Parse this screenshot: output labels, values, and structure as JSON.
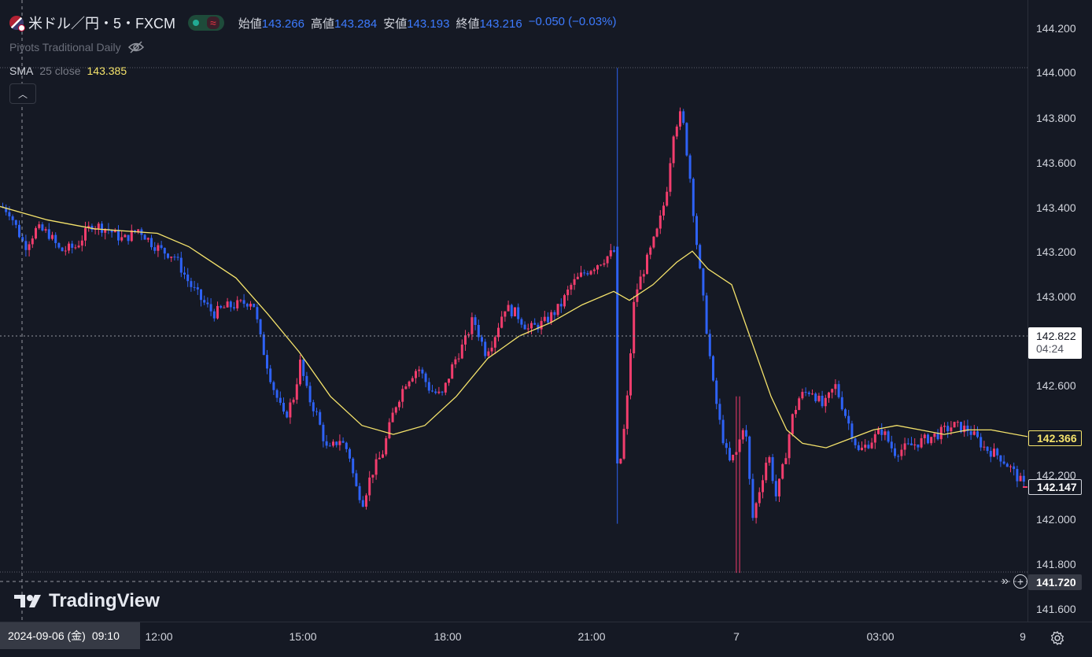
{
  "header": {
    "symbol": "米ドル／円・5・FXCM",
    "flag_icon": "us-jp-flag-icon",
    "ohlc": [
      {
        "key": "始値",
        "value": "143.266"
      },
      {
        "key": "高値",
        "value": "143.284"
      },
      {
        "key": "安値",
        "value": "143.193"
      },
      {
        "key": "終値",
        "value": "143.216"
      }
    ],
    "change": "−0.050 (−0.03%)"
  },
  "indicators": {
    "pivots": "Piyots Traditional Daily",
    "sma_name": "SMA",
    "sma_params": "25 close",
    "sma_value": "143.385"
  },
  "watermark": "TradingView",
  "price_axis": {
    "ticks": [
      "144.200",
      "144.000",
      "143.800",
      "143.600",
      "143.400",
      "143.200",
      "143.000",
      "142.600",
      "142.200",
      "142.000",
      "141.800",
      "141.600"
    ],
    "crosshair_price": "142.822",
    "countdown": "04:24",
    "sma_label": "142.366",
    "last_price": "142.147",
    "cursor_price": "141.720"
  },
  "time_axis": {
    "date_label": "2024-09-06 (金)",
    "time_label": "09:10",
    "ticks": [
      "12:00",
      "15:00",
      "18:00",
      "21:00",
      "7",
      "03:00",
      "9"
    ]
  },
  "colors": {
    "up": "#f23d6d",
    "down": "#2e62f5",
    "sma": "#f5e36b",
    "background": "#151924"
  },
  "chart_data": {
    "type": "candlestick",
    "timeframe": "5m",
    "ylim": [
      141.55,
      144.25
    ],
    "series": [
      {
        "name": "SMA 25 close",
        "type": "line"
      }
    ],
    "close_path": [
      [
        0,
        143.4
      ],
      [
        10,
        143.38
      ],
      [
        20,
        143.3
      ],
      [
        30,
        143.22
      ],
      [
        45,
        143.3
      ],
      [
        60,
        143.28
      ],
      [
        75,
        143.2
      ],
      [
        95,
        143.22
      ],
      [
        115,
        143.32
      ],
      [
        135,
        143.3
      ],
      [
        155,
        143.25
      ],
      [
        175,
        143.3
      ],
      [
        190,
        143.24
      ],
      [
        205,
        143.2
      ],
      [
        220,
        143.18
      ],
      [
        240,
        143.05
      ],
      [
        255,
        142.98
      ],
      [
        270,
        142.92
      ],
      [
        285,
        142.95
      ],
      [
        300,
        142.96
      ],
      [
        320,
        142.98
      ],
      [
        330,
        142.8
      ],
      [
        345,
        142.6
      ],
      [
        360,
        142.45
      ],
      [
        372,
        142.55
      ],
      [
        380,
        142.7
      ],
      [
        390,
        142.55
      ],
      [
        400,
        142.48
      ],
      [
        415,
        142.3
      ],
      [
        430,
        142.36
      ],
      [
        442,
        142.3
      ],
      [
        450,
        142.15
      ],
      [
        460,
        142.08
      ],
      [
        470,
        142.2
      ],
      [
        485,
        142.3
      ],
      [
        500,
        142.5
      ],
      [
        515,
        142.62
      ],
      [
        530,
        142.68
      ],
      [
        545,
        142.58
      ],
      [
        560,
        142.55
      ],
      [
        575,
        142.7
      ],
      [
        590,
        142.8
      ],
      [
        600,
        142.9
      ],
      [
        615,
        142.75
      ],
      [
        625,
        142.8
      ],
      [
        640,
        142.95
      ],
      [
        655,
        142.92
      ],
      [
        670,
        142.85
      ],
      [
        690,
        142.88
      ],
      [
        710,
        142.95
      ],
      [
        725,
        143.05
      ],
      [
        740,
        143.1
      ],
      [
        760,
        143.15
      ],
      [
        780,
        143.2
      ],
      [
        785,
        142.2
      ],
      [
        795,
        142.5
      ],
      [
        805,
        143.0
      ],
      [
        815,
        143.1
      ],
      [
        825,
        143.2
      ],
      [
        835,
        143.3
      ],
      [
        845,
        143.45
      ],
      [
        855,
        143.75
      ],
      [
        865,
        143.82
      ],
      [
        875,
        143.55
      ],
      [
        885,
        143.2
      ],
      [
        895,
        142.9
      ],
      [
        905,
        142.6
      ],
      [
        915,
        142.4
      ],
      [
        925,
        142.25
      ],
      [
        935,
        142.3
      ],
      [
        945,
        142.45
      ],
      [
        955,
        142.0
      ],
      [
        965,
        142.15
      ],
      [
        975,
        142.3
      ],
      [
        985,
        142.1
      ],
      [
        995,
        142.25
      ],
      [
        1005,
        142.45
      ],
      [
        1015,
        142.55
      ],
      [
        1030,
        142.58
      ],
      [
        1045,
        142.5
      ],
      [
        1060,
        142.6
      ],
      [
        1075,
        142.45
      ],
      [
        1090,
        142.3
      ],
      [
        1105,
        142.35
      ],
      [
        1120,
        142.4
      ],
      [
        1135,
        142.3
      ],
      [
        1150,
        142.32
      ],
      [
        1170,
        142.35
      ],
      [
        1190,
        142.38
      ],
      [
        1210,
        142.42
      ],
      [
        1230,
        142.4
      ],
      [
        1250,
        142.32
      ],
      [
        1270,
        142.28
      ],
      [
        1285,
        142.22
      ],
      [
        1300,
        142.15
      ]
    ],
    "sma_path": [
      [
        0,
        143.4
      ],
      [
        60,
        143.34
      ],
      [
        120,
        143.3
      ],
      [
        200,
        143.28
      ],
      [
        240,
        143.22
      ],
      [
        300,
        143.08
      ],
      [
        340,
        142.92
      ],
      [
        380,
        142.75
      ],
      [
        420,
        142.55
      ],
      [
        460,
        142.42
      ],
      [
        500,
        142.38
      ],
      [
        540,
        142.42
      ],
      [
        580,
        142.55
      ],
      [
        620,
        142.72
      ],
      [
        660,
        142.82
      ],
      [
        700,
        142.88
      ],
      [
        740,
        142.96
      ],
      [
        780,
        143.02
      ],
      [
        800,
        142.98
      ],
      [
        830,
        143.05
      ],
      [
        860,
        143.15
      ],
      [
        880,
        143.2
      ],
      [
        900,
        143.12
      ],
      [
        930,
        143.05
      ],
      [
        950,
        142.85
      ],
      [
        980,
        142.55
      ],
      [
        1000,
        142.4
      ],
      [
        1020,
        142.34
      ],
      [
        1050,
        142.32
      ],
      [
        1080,
        142.36
      ],
      [
        1110,
        142.4
      ],
      [
        1140,
        142.42
      ],
      [
        1170,
        142.4
      ],
      [
        1200,
        142.38
      ],
      [
        1230,
        142.4
      ],
      [
        1260,
        142.4
      ],
      [
        1306,
        142.37
      ]
    ]
  }
}
